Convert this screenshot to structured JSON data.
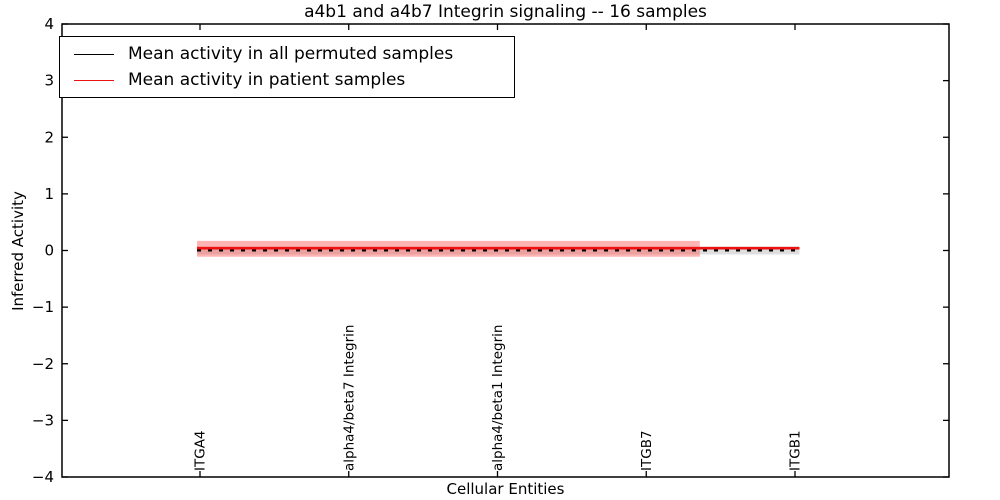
{
  "figure": {
    "title": "a4b1 and a4b7 Integrin signaling -- 16 samples",
    "xlabel": "Cellular Entities",
    "ylabel": "Inferred Activity"
  },
  "legend": {
    "position": "upper left",
    "items": [
      {
        "label": "Mean activity in all permuted samples",
        "color": "#000000"
      },
      {
        "label": "Mean activity in patient samples",
        "color": "#ee1111"
      }
    ]
  },
  "chart_data": {
    "type": "line",
    "title": "a4b1 and a4b7 Integrin signaling -- 16 samples",
    "xlabel": "Cellular Entities",
    "ylabel": "Inferred Activity",
    "ylim": [
      -4,
      4
    ],
    "grid": false,
    "legend_position": "upper left",
    "yticks": [
      {
        "value": 4,
        "label": "4"
      },
      {
        "value": 3,
        "label": "3"
      },
      {
        "value": 2,
        "label": "2"
      },
      {
        "value": 1,
        "label": "1"
      },
      {
        "value": 0,
        "label": "0"
      },
      {
        "value": -1,
        "label": "−1"
      },
      {
        "value": -2,
        "label": "−2"
      },
      {
        "value": -3,
        "label": "−3"
      },
      {
        "value": -4,
        "label": "−4"
      }
    ],
    "categories": [
      "ITGA4",
      "alpha4/beta7 Integrin",
      "alpha4/beta1 Integrin",
      "ITGB7",
      "ITGB1"
    ],
    "series": [
      {
        "name": "Mean activity in all permuted samples",
        "color": "#000000",
        "line_style": "dashed",
        "line_width": 2,
        "x_start": -0.02,
        "x_end": 4.03,
        "mean_values": [
          0.0,
          0.0,
          0.0,
          0.0,
          0.0
        ],
        "band": {
          "center": 0.0,
          "halfwidth": 0.07,
          "color": "#8a8a8a",
          "opacity": 0.28,
          "x_start": -0.02,
          "x_end": 4.03
        }
      },
      {
        "name": "Mean activity in patient samples",
        "color": "#ee1111",
        "line_style": "solid",
        "line_width": 2.6,
        "x_start": -0.02,
        "x_end": 4.03,
        "mean_values": [
          0.04,
          0.04,
          0.04,
          0.04,
          0.04
        ],
        "band": {
          "center": 0.03,
          "halfwidth": 0.14,
          "color": "#ff4d4d",
          "opacity": 0.42,
          "x_start": -0.02,
          "x_end": 3.36
        }
      }
    ]
  }
}
